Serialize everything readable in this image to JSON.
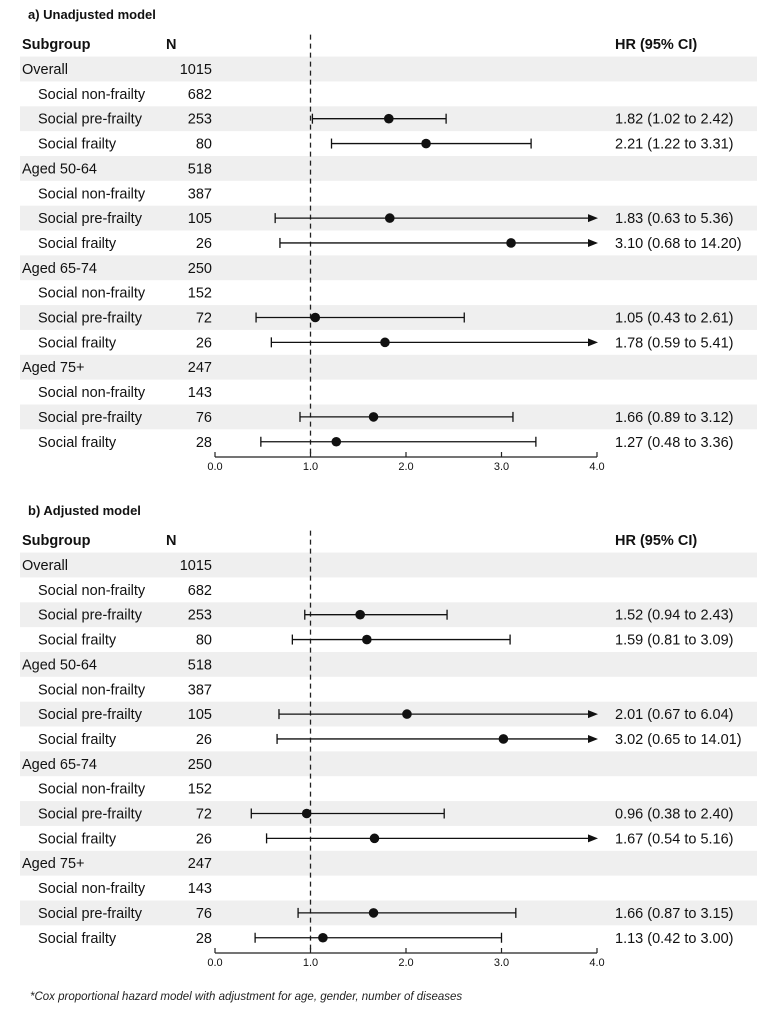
{
  "footnote": "*Cox proportional hazard model with adjustment for age, gender, number of diseases",
  "chart_data": [
    {
      "type": "forest",
      "title": "a) Unadjusted model",
      "col_subgroup": "Subgroup",
      "col_n": "N",
      "col_hr": "HR (95% CI)",
      "reference_line": 1.0,
      "xlim": [
        0,
        4
      ],
      "ticks": [
        "0.0",
        "1.0",
        "2.0",
        "3.0",
        "4.0"
      ],
      "rows": [
        {
          "label": "Overall",
          "indent": 0,
          "n": "1015"
        },
        {
          "label": "Social non-frailty",
          "indent": 1,
          "n": "682"
        },
        {
          "label": "Social pre-frailty",
          "indent": 1,
          "n": "253",
          "hr": 1.82,
          "lo": 1.02,
          "hi": 2.42,
          "text": "1.82 (1.02 to 2.42)"
        },
        {
          "label": "Social frailty",
          "indent": 1,
          "n": "80",
          "hr": 2.21,
          "lo": 1.22,
          "hi": 3.31,
          "text": "2.21 (1.22 to 3.31)"
        },
        {
          "label": "Aged 50-64",
          "indent": 0,
          "n": "518"
        },
        {
          "label": "Social non-frailty",
          "indent": 1,
          "n": "387"
        },
        {
          "label": "Social pre-frailty",
          "indent": 1,
          "n": "105",
          "hr": 1.83,
          "lo": 0.63,
          "hi": 5.36,
          "text": "1.83 (0.63 to 5.36)"
        },
        {
          "label": "Social frailty",
          "indent": 1,
          "n": "26",
          "hr": 3.1,
          "lo": 0.68,
          "hi": 14.2,
          "text": "3.10 (0.68 to 14.20)"
        },
        {
          "label": "Aged 65-74",
          "indent": 0,
          "n": "250"
        },
        {
          "label": "Social non-frailty",
          "indent": 1,
          "n": "152"
        },
        {
          "label": "Social pre-frailty",
          "indent": 1,
          "n": "72",
          "hr": 1.05,
          "lo": 0.43,
          "hi": 2.61,
          "text": "1.05 (0.43 to 2.61)"
        },
        {
          "label": "Social frailty",
          "indent": 1,
          "n": "26",
          "hr": 1.78,
          "lo": 0.59,
          "hi": 5.41,
          "text": "1.78 (0.59 to 5.41)"
        },
        {
          "label": "Aged 75+",
          "indent": 0,
          "n": "247"
        },
        {
          "label": "Social non-frailty",
          "indent": 1,
          "n": "143"
        },
        {
          "label": "Social pre-frailty",
          "indent": 1,
          "n": "76",
          "hr": 1.66,
          "lo": 0.89,
          "hi": 3.12,
          "text": "1.66 (0.89 to 3.12)"
        },
        {
          "label": "Social frailty",
          "indent": 1,
          "n": "28",
          "hr": 1.27,
          "lo": 0.48,
          "hi": 3.36,
          "text": "1.27 (0.48 to 3.36)"
        }
      ]
    },
    {
      "type": "forest",
      "title": "b) Adjusted model",
      "col_subgroup": "Subgroup",
      "col_n": "N",
      "col_hr": "HR (95% CI)",
      "reference_line": 1.0,
      "xlim": [
        0,
        4
      ],
      "ticks": [
        "0.0",
        "1.0",
        "2.0",
        "3.0",
        "4.0"
      ],
      "rows": [
        {
          "label": "Overall",
          "indent": 0,
          "n": "1015"
        },
        {
          "label": "Social non-frailty",
          "indent": 1,
          "n": "682"
        },
        {
          "label": "Social pre-frailty",
          "indent": 1,
          "n": "253",
          "hr": 1.52,
          "lo": 0.94,
          "hi": 2.43,
          "text": "1.52 (0.94 to 2.43)"
        },
        {
          "label": "Social frailty",
          "indent": 1,
          "n": "80",
          "hr": 1.59,
          "lo": 0.81,
          "hi": 3.09,
          "text": "1.59 (0.81 to 3.09)"
        },
        {
          "label": "Aged 50-64",
          "indent": 0,
          "n": "518"
        },
        {
          "label": "Social non-frailty",
          "indent": 1,
          "n": "387"
        },
        {
          "label": "Social pre-frailty",
          "indent": 1,
          "n": "105",
          "hr": 2.01,
          "lo": 0.67,
          "hi": 6.04,
          "text": "2.01 (0.67 to 6.04)"
        },
        {
          "label": "Social frailty",
          "indent": 1,
          "n": "26",
          "hr": 3.02,
          "lo": 0.65,
          "hi": 14.01,
          "text": "3.02 (0.65 to 14.01)"
        },
        {
          "label": "Aged 65-74",
          "indent": 0,
          "n": "250"
        },
        {
          "label": "Social non-frailty",
          "indent": 1,
          "n": "152"
        },
        {
          "label": "Social pre-frailty",
          "indent": 1,
          "n": "72",
          "hr": 0.96,
          "lo": 0.38,
          "hi": 2.4,
          "text": "0.96 (0.38 to 2.40)"
        },
        {
          "label": "Social frailty",
          "indent": 1,
          "n": "26",
          "hr": 1.67,
          "lo": 0.54,
          "hi": 5.16,
          "text": "1.67 (0.54 to 5.16)"
        },
        {
          "label": "Aged 75+",
          "indent": 0,
          "n": "247"
        },
        {
          "label": "Social non-frailty",
          "indent": 1,
          "n": "143"
        },
        {
          "label": "Social pre-frailty",
          "indent": 1,
          "n": "76",
          "hr": 1.66,
          "lo": 0.87,
          "hi": 3.15,
          "text": "1.66 (0.87 to 3.15)"
        },
        {
          "label": "Social frailty",
          "indent": 1,
          "n": "28",
          "hr": 1.13,
          "lo": 0.42,
          "hi": 3.0,
          "text": "1.13 (0.42 to 3.00)"
        }
      ]
    }
  ]
}
